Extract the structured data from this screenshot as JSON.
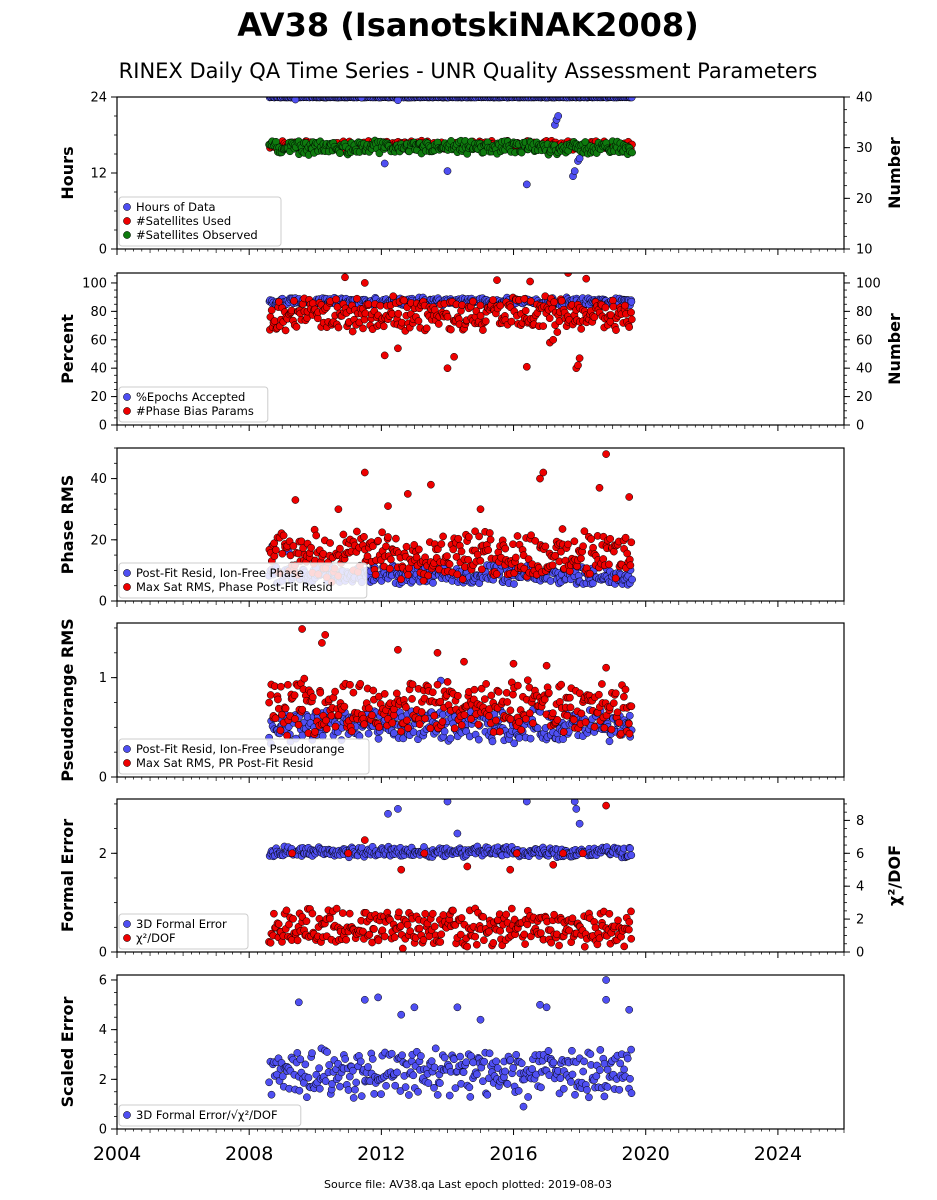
{
  "title": "AV38 (IsanotskiNAK2008)",
  "subtitle": "RINEX Daily QA Time Series - UNR Quality Assessment Parameters",
  "footer": "Source file: AV38.qa Last epoch plotted: 2019-08-03",
  "colors": {
    "blue": "#4f4ff2",
    "red": "#ee0000",
    "green": "#0e7a0e",
    "edge": "#000000"
  },
  "x_axis": {
    "range": [
      2004,
      2026
    ],
    "ticks": [
      2004,
      2008,
      2012,
      2016,
      2020,
      2024
    ],
    "data_start": 2008.6,
    "data_end": 2019.59
  },
  "chart_data": [
    {
      "type": "scatter",
      "ylabel": "Hours",
      "ylim": [
        0,
        24
      ],
      "yticks": [
        0,
        12,
        24
      ],
      "y2label": "Number",
      "y2lim": [
        10,
        40
      ],
      "y2ticks": [
        10,
        20,
        30,
        40
      ],
      "legend": "lower-left",
      "series": [
        {
          "name": "Hours of Data",
          "color": "blue",
          "axis": "left",
          "typical": [
            23.9,
            24.0
          ],
          "outliers": [
            [
              2009.4,
              23.6
            ],
            [
              2011.4,
              23.9
            ],
            [
              2012.5,
              23.5
            ],
            [
              2012.1,
              13.5
            ],
            [
              2014.0,
              12.3
            ],
            [
              2016.4,
              10.2
            ],
            [
              2017.25,
              19.6
            ],
            [
              2017.3,
              20.4
            ],
            [
              2017.35,
              21.0
            ],
            [
              2017.8,
              11.5
            ],
            [
              2017.85,
              12.3
            ],
            [
              2017.95,
              13.9
            ],
            [
              2018.0,
              14.3
            ]
          ]
        },
        {
          "name": "#Satellites Used",
          "color": "red",
          "axis": "right",
          "typical": [
            29.5,
            31.5
          ],
          "outliers": []
        },
        {
          "name": "#Satellites Observed",
          "color": "green",
          "axis": "right",
          "typical": [
            28.5,
            31.5
          ],
          "outliers": []
        }
      ]
    },
    {
      "type": "scatter",
      "ylabel": "Percent",
      "ylim": [
        0,
        107
      ],
      "yticks": [
        0,
        20,
        40,
        60,
        80,
        100
      ],
      "y2label": "Number",
      "y2lim": [
        0,
        107
      ],
      "y2ticks": [
        0,
        20,
        40,
        60,
        80,
        100
      ],
      "legend": "lower-left",
      "series": [
        {
          "name": "%Epochs Accepted",
          "color": "blue",
          "axis": "left",
          "typical": [
            84,
            90
          ],
          "outliers": []
        },
        {
          "name": "#Phase Bias Params",
          "color": "red",
          "axis": "right",
          "typical": [
            64,
            92
          ],
          "outliers": [
            [
              2010.9,
              104
            ],
            [
              2011.5,
              100
            ],
            [
              2012.1,
              49
            ],
            [
              2012.5,
              54
            ],
            [
              2014.0,
              40
            ],
            [
              2014.2,
              48
            ],
            [
              2015.5,
              102
            ],
            [
              2016.4,
              41
            ],
            [
              2016.5,
              101
            ],
            [
              2017.1,
              58
            ],
            [
              2017.2,
              60
            ],
            [
              2017.65,
              107
            ],
            [
              2017.9,
              40
            ],
            [
              2017.95,
              42
            ],
            [
              2018.0,
              47
            ],
            [
              2018.2,
              103
            ]
          ]
        }
      ]
    },
    {
      "type": "scatter",
      "ylabel": "Phase RMS",
      "ylim": [
        0,
        50
      ],
      "yticks": [
        0,
        20,
        40
      ],
      "legend": "lower-left",
      "series": [
        {
          "name": "Post-Fit Resid, Ion-Free Phase",
          "color": "blue",
          "axis": "left",
          "typical": [
            5,
            12
          ],
          "outliers": [
            [
              2008.7,
              18
            ],
            [
              2009.2,
              16
            ]
          ]
        },
        {
          "name": "Max Sat RMS, Phase Post-Fit Resid",
          "color": "red",
          "axis": "left",
          "typical": [
            6,
            24
          ],
          "outliers": [
            [
              2009.4,
              33
            ],
            [
              2011.5,
              42
            ],
            [
              2012.8,
              35
            ],
            [
              2013.5,
              38
            ],
            [
              2015.0,
              30
            ],
            [
              2016.8,
              40
            ],
            [
              2016.9,
              42
            ],
            [
              2018.6,
              37
            ],
            [
              2018.8,
              48
            ],
            [
              2019.5,
              34
            ],
            [
              2010.7,
              30
            ],
            [
              2012.2,
              31
            ]
          ]
        }
      ]
    },
    {
      "type": "scatter",
      "ylabel": "Pseudorange RMS",
      "ylim": [
        0,
        1.55
      ],
      "yticks": [
        0,
        1
      ],
      "legend": "lower-left",
      "series": [
        {
          "name": "Post-Fit Resid, Ion-Free Pseudorange",
          "color": "blue",
          "axis": "left",
          "typical": [
            0.33,
            0.7
          ],
          "outliers": [
            [
              2013.8,
              0.97
            ]
          ]
        },
        {
          "name": "Max Sat RMS, PR Post-Fit Resid",
          "color": "red",
          "axis": "left",
          "typical": [
            0.4,
            1.0
          ],
          "outliers": [
            [
              2009.6,
              1.49
            ],
            [
              2010.3,
              1.43
            ],
            [
              2010.2,
              1.35
            ],
            [
              2012.5,
              1.28
            ],
            [
              2013.7,
              1.25
            ],
            [
              2014.5,
              1.16
            ],
            [
              2016.0,
              1.14
            ],
            [
              2017.0,
              1.12
            ],
            [
              2018.8,
              1.1
            ]
          ]
        }
      ]
    },
    {
      "type": "scatter",
      "ylabel": "Formal Error",
      "ylim": [
        0,
        3.1
      ],
      "yticks": [
        0,
        2
      ],
      "y2label": "χ²/DOF",
      "y2lim": [
        0,
        9.3
      ],
      "y2ticks": [
        0,
        2,
        4,
        6,
        8
      ],
      "legend": "lower-left",
      "series": [
        {
          "name": "3D Formal Error",
          "color": "blue",
          "axis": "left",
          "typical": [
            1.9,
            2.15
          ],
          "outliers": [
            [
              2012.2,
              2.8
            ],
            [
              2012.5,
              2.9
            ],
            [
              2014.0,
              3.05
            ],
            [
              2014.3,
              2.4
            ],
            [
              2016.4,
              3.05
            ],
            [
              2017.85,
              3.05
            ],
            [
              2017.9,
              2.9
            ],
            [
              2018.0,
              2.6
            ]
          ]
        },
        {
          "name": "χ²/DOF",
          "color": "red",
          "axis": "right",
          "typical": [
            0.1,
            2.8
          ],
          "outliers": [
            [
              2009.3,
              6.0
            ],
            [
              2011.0,
              6.0
            ],
            [
              2011.5,
              6.8
            ],
            [
              2013.3,
              6.0
            ],
            [
              2016.1,
              6.0
            ],
            [
              2017.5,
              6.0
            ],
            [
              2018.1,
              6.0
            ],
            [
              2018.8,
              8.9
            ],
            [
              2012.6,
              5.0
            ],
            [
              2014.6,
              5.2
            ],
            [
              2015.9,
              5.0
            ],
            [
              2017.2,
              5.3
            ]
          ]
        }
      ]
    },
    {
      "type": "scatter",
      "ylabel": "Scaled Error",
      "ylim": [
        0,
        6.2
      ],
      "yticks": [
        0,
        2,
        4,
        6
      ],
      "legend": "lower-left",
      "series": [
        {
          "name": "3D Formal Error/√χ²/DOF",
          "color": "blue",
          "axis": "left",
          "typical": [
            1.2,
            3.4
          ],
          "outliers": [
            [
              2009.5,
              5.1
            ],
            [
              2011.5,
              5.2
            ],
            [
              2011.9,
              5.3
            ],
            [
              2013.0,
              4.9
            ],
            [
              2014.3,
              4.9
            ],
            [
              2016.8,
              5.0
            ],
            [
              2017.0,
              4.9
            ],
            [
              2018.8,
              6.0
            ],
            [
              2018.8,
              5.2
            ],
            [
              2019.5,
              4.8
            ],
            [
              2016.3,
              0.9
            ],
            [
              2015.0,
              4.4
            ],
            [
              2012.6,
              4.6
            ]
          ]
        }
      ]
    }
  ]
}
